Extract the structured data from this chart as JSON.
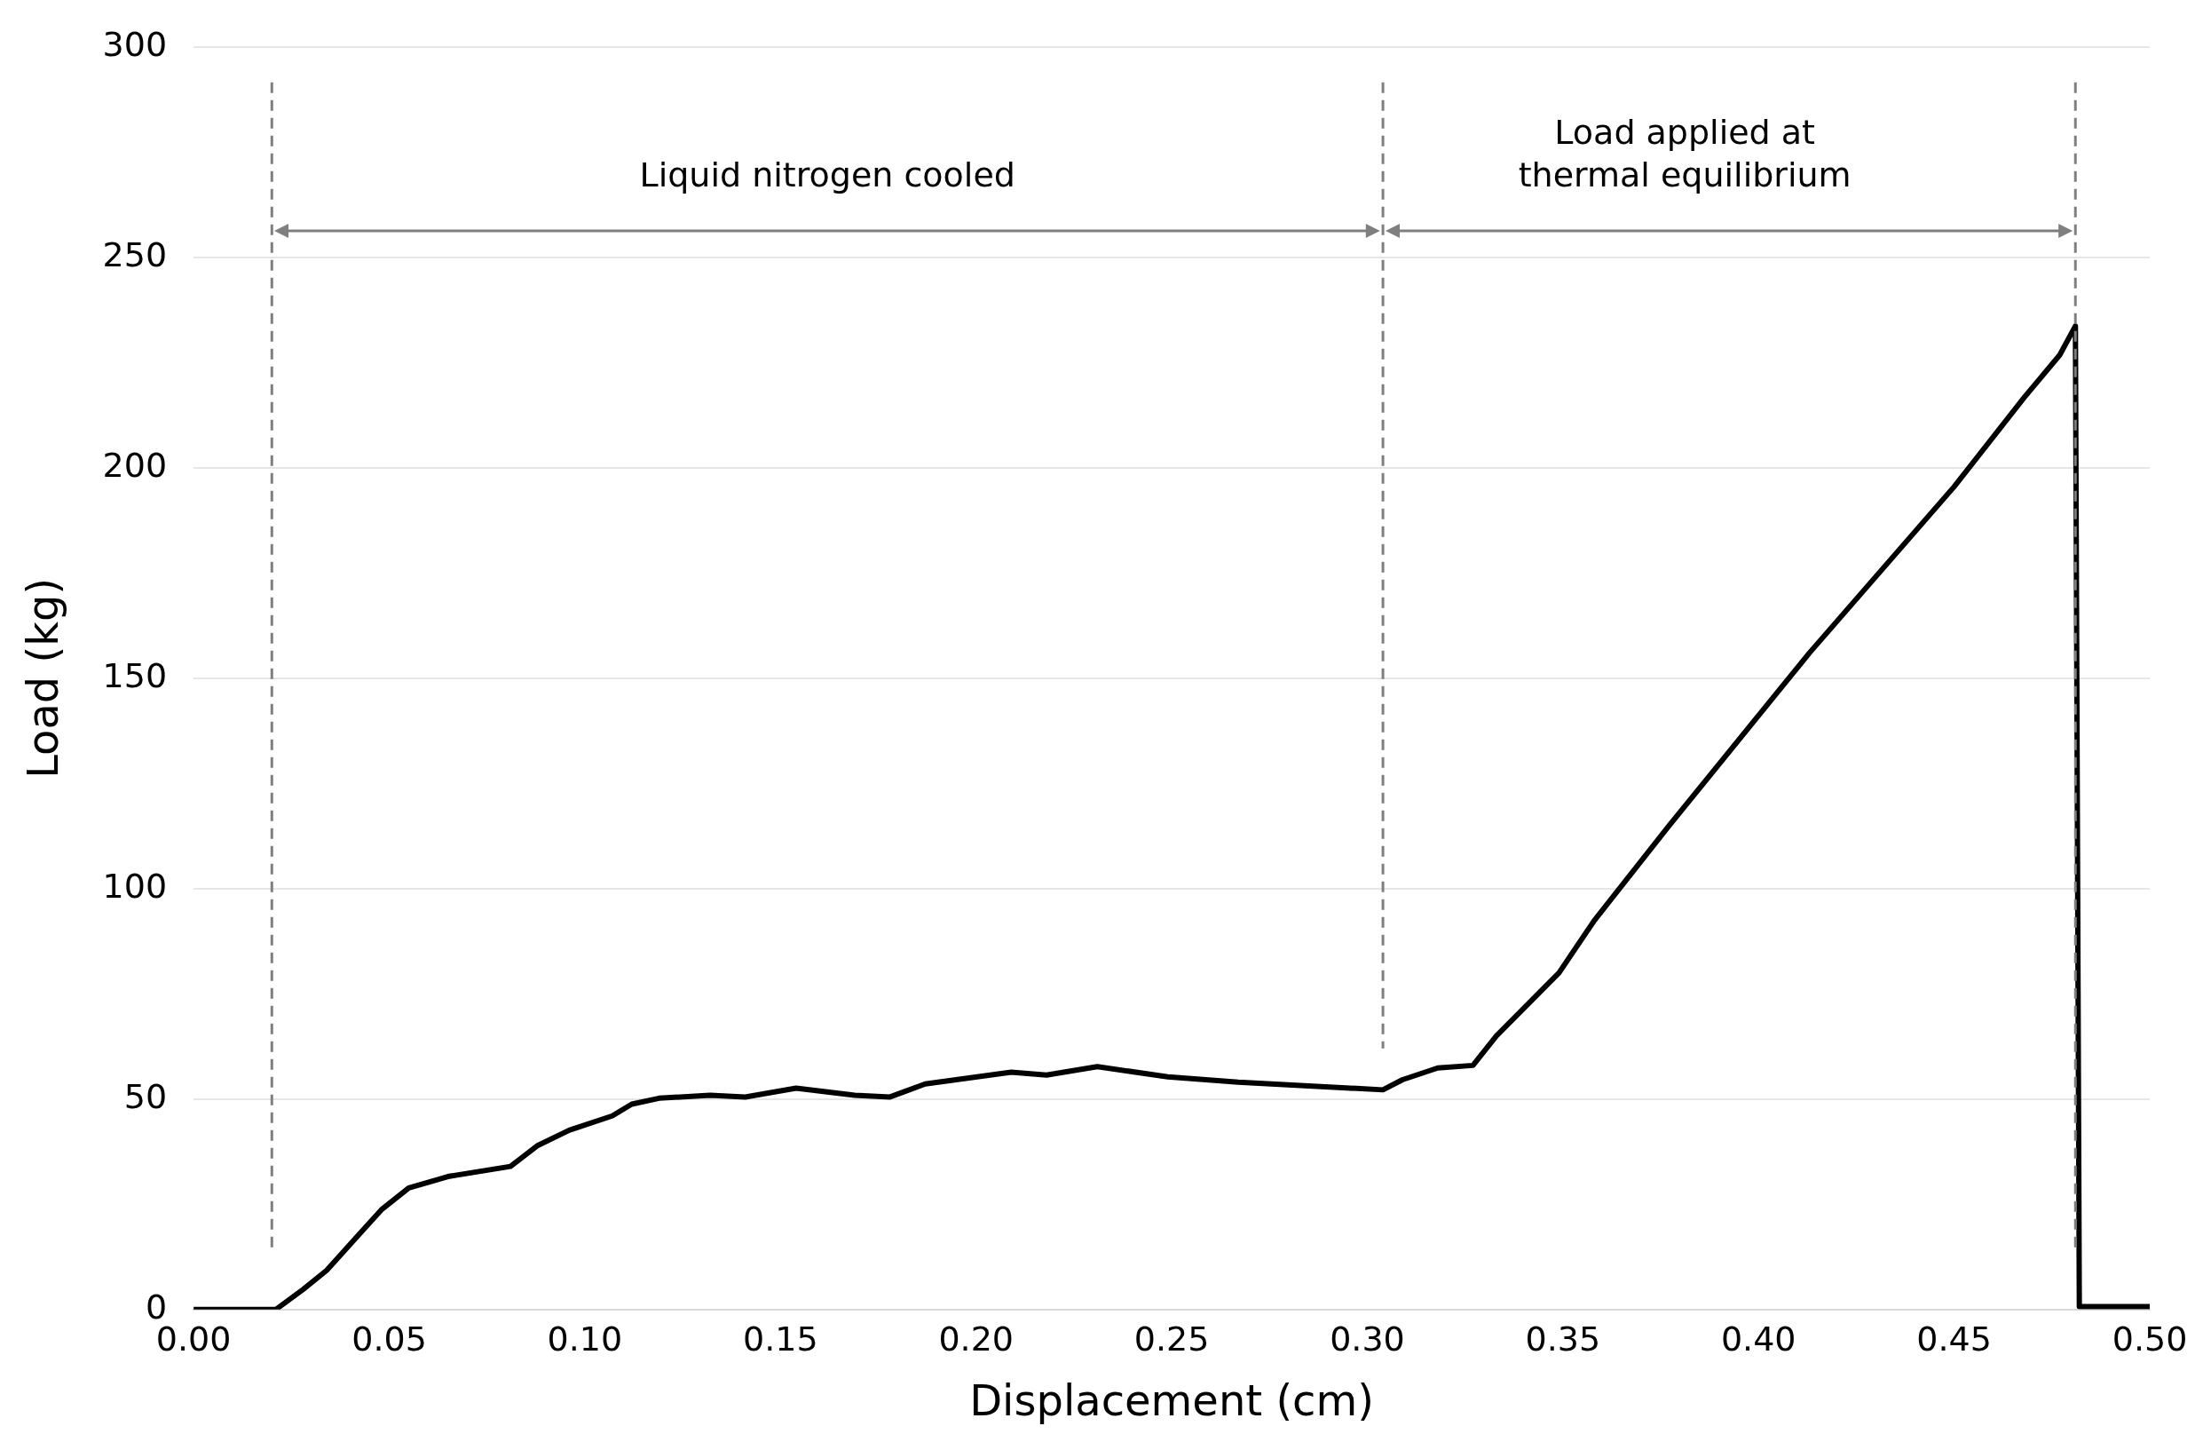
{
  "chart_data": {
    "type": "line",
    "xlabel": "Displacement (cm)",
    "ylabel": "Load (kg)",
    "x": [
      0,
      0.021,
      0.028,
      0.034,
      0.043,
      0.048,
      0.055,
      0.065,
      0.081,
      0.088,
      0.096,
      0.107,
      0.112,
      0.119,
      0.132,
      0.141,
      0.154,
      0.169,
      0.178,
      0.187,
      0.209,
      0.218,
      0.231,
      0.249,
      0.267,
      0.304,
      0.309,
      0.318,
      0.327,
      0.333,
      0.349,
      0.358,
      0.377,
      0.413,
      0.45,
      0.468,
      0.477,
      0.481,
      0.482,
      0.5
    ],
    "series": [
      {
        "color": "#000000",
        "values": [
          0,
          0,
          4.8,
          9.3,
          18.6,
          23.7,
          28.9,
          31.6,
          34,
          39,
          42.6,
          46,
          48.8,
          50.2,
          50.9,
          50.5,
          52.6,
          50.9,
          50.5,
          53.6,
          56.4,
          55.7,
          57.7,
          55.3,
          54,
          52.2,
          54.6,
          57.4,
          58,
          65,
          80,
          92.4,
          114.8,
          156,
          195.5,
          216.8,
          226.8,
          233.7,
          0.7,
          0.7
        ]
      }
    ],
    "xlim": [
      0,
      0.5
    ],
    "xticks": [
      {
        "value": 0,
        "label": "0.00"
      },
      {
        "value": 0.05,
        "label": "0.05"
      },
      {
        "value": 0.1,
        "label": "0.10"
      },
      {
        "value": 0.15,
        "label": "0.15"
      },
      {
        "value": 0.2,
        "label": "0.20"
      },
      {
        "value": 0.25,
        "label": "0.25"
      },
      {
        "value": 0.3,
        "label": "0.30"
      },
      {
        "value": 0.35,
        "label": "0.35"
      },
      {
        "value": 0.4,
        "label": "0.40"
      },
      {
        "value": 0.45,
        "label": "0.45"
      },
      {
        "value": 0.5,
        "label": "0.50"
      }
    ],
    "ylim": [
      0,
      300
    ],
    "yticks": [
      0,
      50,
      100,
      150,
      200,
      250,
      300
    ],
    "grid": "y",
    "legend": false,
    "marker": "none",
    "line_style": "solid",
    "ref_lines": [
      {
        "axis": "x",
        "value": 0.02,
        "color": "#7f7f7f",
        "line_style": "dashed"
      },
      {
        "axis": "x",
        "value": 0.304,
        "color": "#7f7f7f",
        "line_style": "dashed"
      },
      {
        "axis": "x",
        "value": 0.481,
        "color": "#7f7f7f",
        "line_style": "dashed"
      }
    ],
    "annotations": [
      "Liquid nitrogen cooled",
      "Load applied at\nthermal equilibrium"
    ]
  }
}
